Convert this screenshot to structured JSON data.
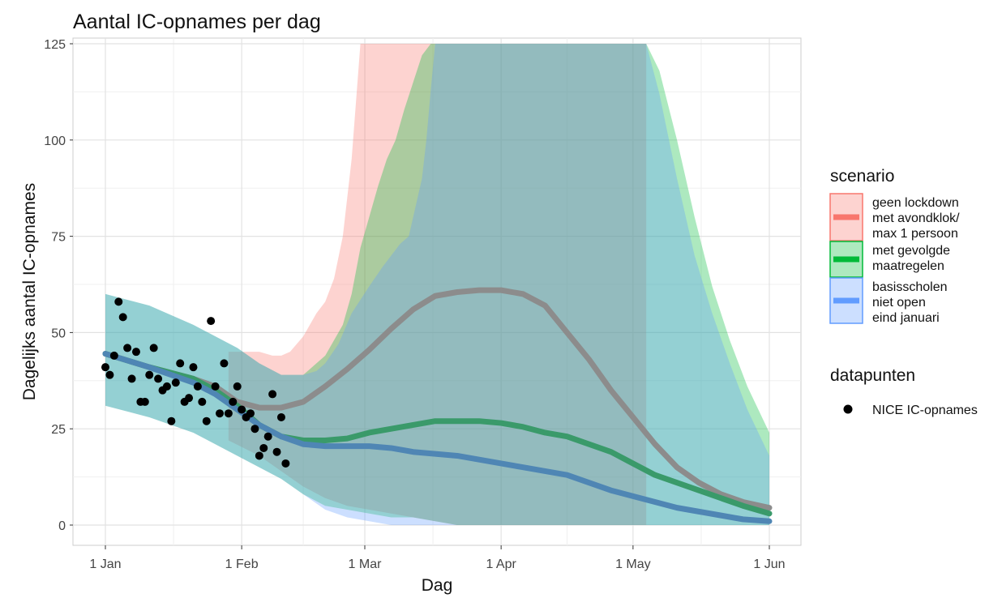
{
  "chart_data": {
    "type": "line",
    "title": "Aantal IC-opnames per dag",
    "xlabel": "Dag",
    "ylabel": "Dagelijks aantal IC-opnames",
    "x_range_days": [
      0,
      151
    ],
    "ylim": [
      0,
      125
    ],
    "x_ticks": [
      {
        "day": 0,
        "label": "1 Jan"
      },
      {
        "day": 31,
        "label": "1 Feb"
      },
      {
        "day": 59,
        "label": "1 Mar"
      },
      {
        "day": 90,
        "label": "1 Apr"
      },
      {
        "day": 120,
        "label": "1 May"
      },
      {
        "day": 151,
        "label": "1 Jun"
      }
    ],
    "y_ticks": [
      {
        "value": 0,
        "label": "0"
      },
      {
        "value": 25,
        "label": "25"
      },
      {
        "value": 50,
        "label": "50"
      },
      {
        "value": 75,
        "label": "75"
      },
      {
        "value": 100,
        "label": "100"
      },
      {
        "value": 125,
        "label": "125"
      }
    ],
    "grid": true,
    "legend": {
      "scenario_title": "scenario",
      "datapunten_title": "datapunten",
      "placement": "right"
    },
    "series": [
      {
        "key": "lockdown",
        "label_lines": [
          "geen lockdown",
          " met avondklok/",
          " max 1 persoon"
        ],
        "color": "#f8766d",
        "line_color": "#8c8c8c",
        "line": [
          [
            0,
            44.5
          ],
          [
            10,
            41
          ],
          [
            20,
            38
          ],
          [
            25,
            36
          ],
          [
            30,
            32
          ],
          [
            35,
            30.5
          ],
          [
            40,
            30.5
          ],
          [
            45,
            32
          ],
          [
            50,
            36
          ],
          [
            55,
            40.5
          ],
          [
            60,
            45.5
          ],
          [
            65,
            51
          ],
          [
            70,
            56
          ],
          [
            75,
            59.5
          ],
          [
            80,
            60.5
          ],
          [
            85,
            61
          ],
          [
            90,
            61
          ],
          [
            95,
            60
          ],
          [
            100,
            57
          ],
          [
            105,
            50
          ],
          [
            110,
            43
          ],
          [
            115,
            35
          ],
          [
            120,
            28
          ],
          [
            125,
            21
          ],
          [
            130,
            15
          ],
          [
            135,
            11
          ],
          [
            140,
            8
          ],
          [
            145,
            6
          ],
          [
            151,
            4.5
          ]
        ],
        "upper": [
          [
            28,
            45
          ],
          [
            30,
            45
          ],
          [
            35,
            45
          ],
          [
            38,
            44
          ],
          [
            40,
            44
          ],
          [
            42,
            45
          ],
          [
            45,
            49
          ],
          [
            48,
            55
          ],
          [
            50,
            58
          ],
          [
            52,
            64
          ],
          [
            54,
            75
          ],
          [
            56,
            95
          ],
          [
            57,
            110
          ],
          [
            58,
            125
          ],
          [
            73,
            125
          ],
          [
            123,
            125
          ]
        ],
        "lower": [
          [
            28,
            22
          ],
          [
            35,
            18
          ],
          [
            40,
            14
          ],
          [
            45,
            10
          ],
          [
            50,
            7
          ],
          [
            55,
            5
          ],
          [
            60,
            4
          ],
          [
            65,
            3
          ],
          [
            70,
            2
          ],
          [
            75,
            1
          ],
          [
            80,
            0
          ],
          [
            123,
            0
          ]
        ]
      },
      {
        "key": "gevolgde",
        "label_lines": [
          "met gevolgde",
          " maatregelen"
        ],
        "color": "#00ba38",
        "line_color": "#3a9a6a",
        "line": [
          [
            0,
            44.5
          ],
          [
            10,
            41
          ],
          [
            20,
            38
          ],
          [
            25,
            35
          ],
          [
            30,
            31
          ],
          [
            35,
            26
          ],
          [
            40,
            23
          ],
          [
            45,
            22
          ],
          [
            50,
            22
          ],
          [
            55,
            22.5
          ],
          [
            60,
            24
          ],
          [
            65,
            25
          ],
          [
            70,
            26
          ],
          [
            75,
            27
          ],
          [
            80,
            27
          ],
          [
            85,
            27
          ],
          [
            90,
            26.5
          ],
          [
            95,
            25.5
          ],
          [
            100,
            24
          ],
          [
            105,
            23
          ],
          [
            110,
            21
          ],
          [
            115,
            19
          ],
          [
            120,
            16
          ],
          [
            125,
            13
          ],
          [
            130,
            11
          ],
          [
            135,
            9
          ],
          [
            140,
            7
          ],
          [
            145,
            5
          ],
          [
            151,
            3
          ]
        ],
        "upper": [
          [
            0,
            60
          ],
          [
            10,
            57
          ],
          [
            20,
            52
          ],
          [
            30,
            46
          ],
          [
            35,
            42
          ],
          [
            40,
            39
          ],
          [
            45,
            39
          ],
          [
            48,
            42
          ],
          [
            50,
            44
          ],
          [
            52,
            48
          ],
          [
            54,
            52
          ],
          [
            56,
            60
          ],
          [
            58,
            72
          ],
          [
            60,
            80
          ],
          [
            62,
            88
          ],
          [
            64,
            95
          ],
          [
            66,
            100
          ],
          [
            68,
            108
          ],
          [
            70,
            115
          ],
          [
            72,
            122
          ],
          [
            74,
            125
          ],
          [
            123,
            125
          ],
          [
            126,
            118
          ],
          [
            130,
            100
          ],
          [
            134,
            80
          ],
          [
            138,
            62
          ],
          [
            142,
            48
          ],
          [
            146,
            36
          ],
          [
            151,
            24
          ]
        ],
        "lower": [
          [
            0,
            31
          ],
          [
            10,
            28
          ],
          [
            20,
            24
          ],
          [
            30,
            18
          ],
          [
            35,
            15
          ],
          [
            40,
            12
          ],
          [
            45,
            8
          ],
          [
            50,
            5
          ],
          [
            55,
            4
          ],
          [
            60,
            3
          ],
          [
            65,
            2
          ],
          [
            70,
            2
          ],
          [
            75,
            1
          ],
          [
            80,
            0
          ],
          [
            151,
            0
          ]
        ]
      },
      {
        "key": "basisscholen",
        "label_lines": [
          "basisscholen",
          " niet open",
          " eind januari"
        ],
        "color": "#619cff",
        "line_color": "#4f86b4",
        "line": [
          [
            0,
            44.5
          ],
          [
            10,
            41
          ],
          [
            20,
            37
          ],
          [
            25,
            34
          ],
          [
            30,
            30
          ],
          [
            35,
            26
          ],
          [
            40,
            23
          ],
          [
            45,
            21
          ],
          [
            50,
            20.5
          ],
          [
            55,
            20.5
          ],
          [
            60,
            20.5
          ],
          [
            65,
            20
          ],
          [
            70,
            19
          ],
          [
            75,
            18.5
          ],
          [
            80,
            18
          ],
          [
            85,
            17
          ],
          [
            90,
            16
          ],
          [
            95,
            15
          ],
          [
            100,
            14
          ],
          [
            105,
            13
          ],
          [
            110,
            11
          ],
          [
            115,
            9
          ],
          [
            120,
            7.5
          ],
          [
            125,
            6
          ],
          [
            130,
            4.5
          ],
          [
            135,
            3.5
          ],
          [
            140,
            2.5
          ],
          [
            145,
            1.5
          ],
          [
            151,
            1
          ]
        ],
        "upper": [
          [
            0,
            60
          ],
          [
            10,
            57
          ],
          [
            20,
            52
          ],
          [
            30,
            46
          ],
          [
            35,
            42
          ],
          [
            40,
            39
          ],
          [
            45,
            39
          ],
          [
            48,
            40
          ],
          [
            50,
            42
          ],
          [
            53,
            47
          ],
          [
            56,
            55
          ],
          [
            60,
            62
          ],
          [
            63,
            67
          ],
          [
            65,
            70
          ],
          [
            67,
            73
          ],
          [
            69,
            75
          ],
          [
            70,
            80
          ],
          [
            72,
            90
          ],
          [
            73,
            100
          ],
          [
            74,
            113
          ],
          [
            75,
            125
          ],
          [
            123,
            125
          ],
          [
            126,
            112
          ],
          [
            130,
            90
          ],
          [
            134,
            70
          ],
          [
            138,
            55
          ],
          [
            142,
            42
          ],
          [
            146,
            30
          ],
          [
            151,
            18
          ]
        ],
        "lower": [
          [
            0,
            31
          ],
          [
            10,
            28
          ],
          [
            20,
            24
          ],
          [
            30,
            18
          ],
          [
            35,
            15
          ],
          [
            40,
            12
          ],
          [
            45,
            8
          ],
          [
            50,
            4
          ],
          [
            55,
            2
          ],
          [
            60,
            1
          ],
          [
            65,
            0
          ],
          [
            70,
            0
          ],
          [
            90,
            0
          ],
          [
            151,
            0
          ]
        ]
      }
    ],
    "points": {
      "label": "NICE IC-opnames",
      "color": "#000000",
      "values": [
        [
          0,
          41
        ],
        [
          1,
          39
        ],
        [
          2,
          44
        ],
        [
          3,
          58
        ],
        [
          4,
          54
        ],
        [
          5,
          46
        ],
        [
          6,
          38
        ],
        [
          7,
          45
        ],
        [
          8,
          32
        ],
        [
          9,
          32
        ],
        [
          10,
          39
        ],
        [
          11,
          46
        ],
        [
          12,
          38
        ],
        [
          13,
          35
        ],
        [
          14,
          36
        ],
        [
          15,
          27
        ],
        [
          16,
          37
        ],
        [
          17,
          42
        ],
        [
          18,
          32
        ],
        [
          19,
          33
        ],
        [
          20,
          41
        ],
        [
          21,
          36
        ],
        [
          22,
          32
        ],
        [
          23,
          27
        ],
        [
          24,
          53
        ],
        [
          25,
          36
        ],
        [
          26,
          29
        ],
        [
          27,
          42
        ],
        [
          28,
          29
        ],
        [
          29,
          32
        ],
        [
          30,
          36
        ],
        [
          31,
          30
        ],
        [
          32,
          28
        ],
        [
          33,
          29
        ],
        [
          34,
          25
        ],
        [
          35,
          18
        ],
        [
          36,
          20
        ],
        [
          37,
          23
        ],
        [
          38,
          34
        ],
        [
          39,
          19
        ],
        [
          40,
          28
        ],
        [
          41,
          16
        ]
      ]
    }
  }
}
